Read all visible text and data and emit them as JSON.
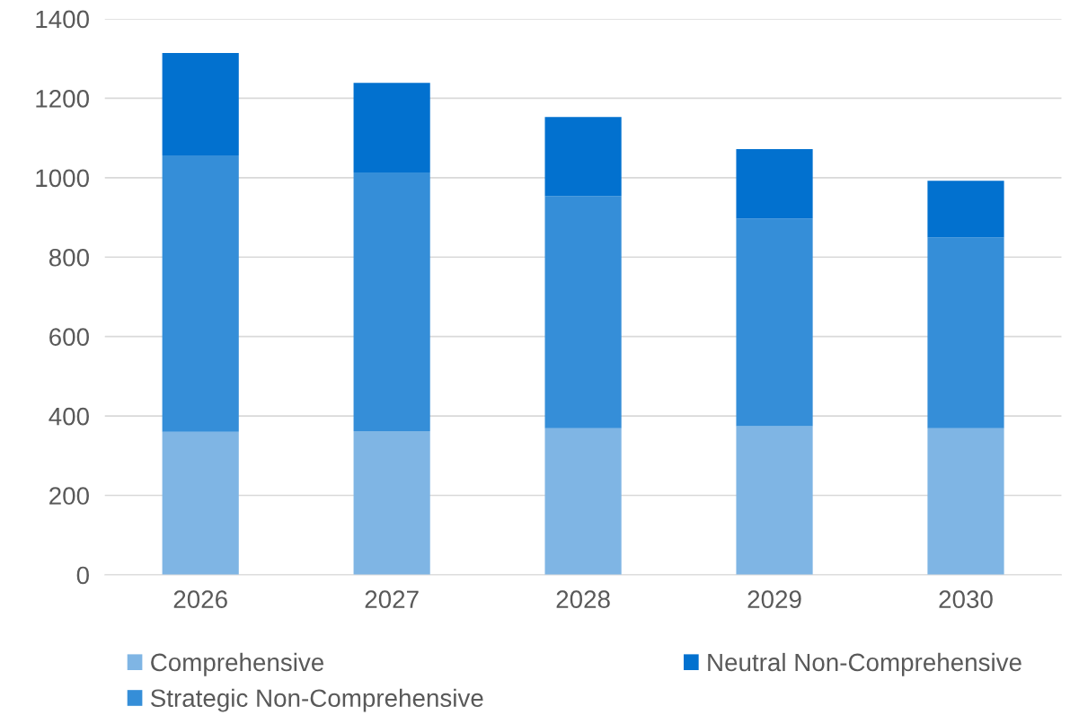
{
  "chart_data": {
    "type": "bar",
    "stacked": true,
    "categories": [
      "2026",
      "2027",
      "2028",
      "2029",
      "2030"
    ],
    "series": [
      {
        "name": "Comprehensive",
        "color": "#7fb5e4",
        "values": [
          360,
          362,
          369,
          374,
          369
        ]
      },
      {
        "name": "Strategic Non-Comprehensive",
        "color": "#358ed8",
        "values": [
          696,
          651,
          585,
          523,
          481
        ]
      },
      {
        "name": "Neutral Non-Comprehensive",
        "color": "#0271cf",
        "values": [
          258,
          226,
          199,
          175,
          142
        ]
      }
    ],
    "ylim": [
      0,
      1400
    ],
    "yticks": [
      0,
      200,
      400,
      600,
      800,
      1000,
      1200,
      1400
    ],
    "grid": "y",
    "legend": "bottom"
  }
}
